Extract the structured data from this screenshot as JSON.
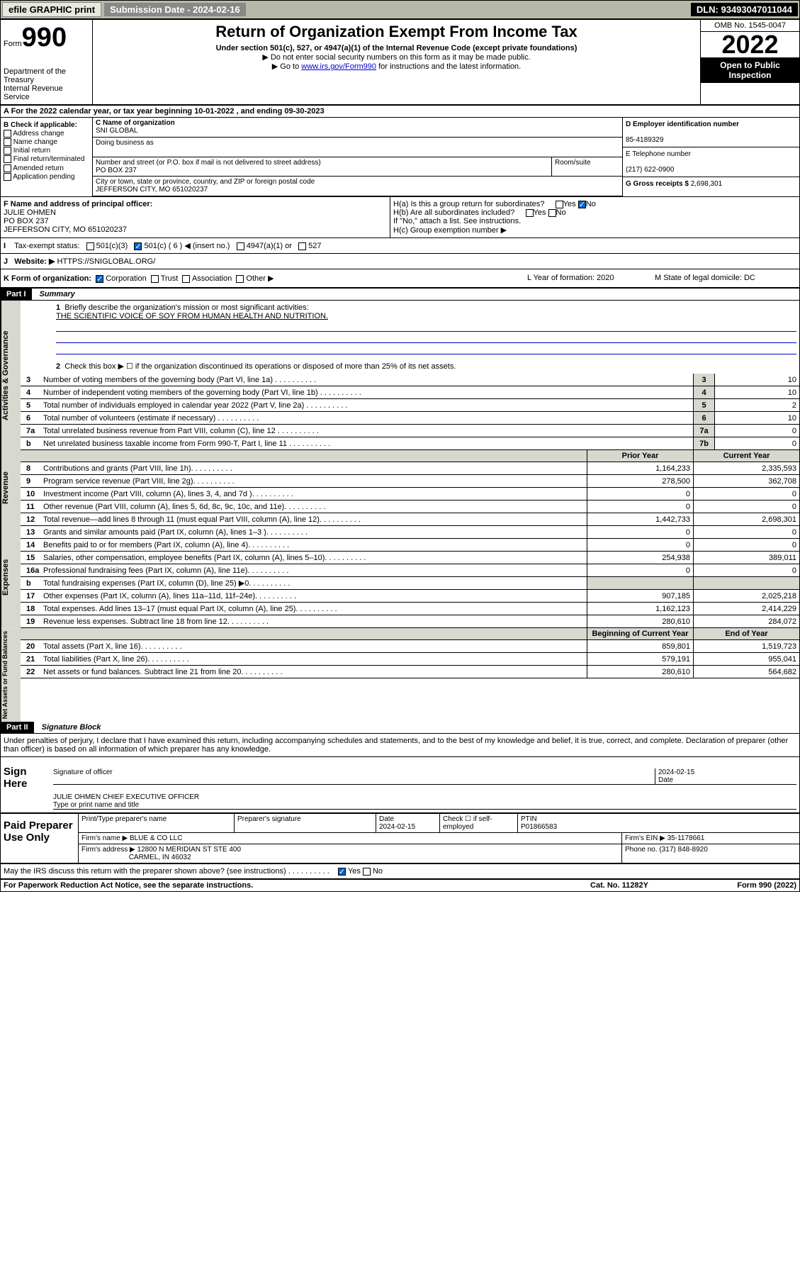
{
  "topbar": {
    "efile": "efile GRAPHIC print",
    "submission_label": "Submission Date - 2024-02-16",
    "dln": "DLN: 93493047011044"
  },
  "header": {
    "form_label": "Form",
    "form_num": "990",
    "dept": "Department of the Treasury",
    "irs": "Internal Revenue Service",
    "title": "Return of Organization Exempt From Income Tax",
    "subtitle": "Under section 501(c), 527, or 4947(a)(1) of the Internal Revenue Code (except private foundations)",
    "note1": "▶ Do not enter social security numbers on this form as it may be made public.",
    "note2_pre": "▶ Go to ",
    "note2_link": "www.irs.gov/Form990",
    "note2_post": " for instructions and the latest information.",
    "omb": "OMB No. 1545-0047",
    "year": "2022",
    "inspect": "Open to Public Inspection"
  },
  "row_a": "A For the 2022 calendar year, or tax year beginning 10-01-2022  , and ending 09-30-2023",
  "col_b": {
    "hdr": "B Check if applicable:",
    "addr": "Address change",
    "name": "Name change",
    "init": "Initial return",
    "final": "Final return/terminated",
    "amend": "Amended return",
    "app": "Application pending"
  },
  "col_c": {
    "name_label": "C Name of organization",
    "name": "SNI GLOBAL",
    "dba_label": "Doing business as",
    "addr_label": "Number and street (or P.O. box if mail is not delivered to street address)",
    "addr": "PO BOX 237",
    "room_label": "Room/suite",
    "city_label": "City or town, state or province, country, and ZIP or foreign postal code",
    "city": "JEFFERSON CITY, MO  651020237"
  },
  "col_d": {
    "ein_label": "D Employer identification number",
    "ein": "85-4189329",
    "phone_label": "E Telephone number",
    "phone": "(217) 622-0900",
    "gross_label": "G Gross receipts $",
    "gross": "2,698,301"
  },
  "f": {
    "label": "F Name and address of principal officer:",
    "name": "JULIE OHMEN",
    "addr1": "PO BOX 237",
    "addr2": "JEFFERSON CITY, MO  651020237"
  },
  "h": {
    "a": "H(a)  Is this a group return for subordinates?",
    "b": "H(b)  Are all subordinates included?",
    "b_note": "If \"No,\" attach a list. See instructions.",
    "c": "H(c)  Group exemption number ▶",
    "yes": "Yes",
    "no": "No"
  },
  "row_i": {
    "label": "Tax-exempt status:",
    "opts": [
      "501(c)(3)",
      "501(c) ( 6 ) ◀ (insert no.)",
      "4947(a)(1) or",
      "527"
    ]
  },
  "row_j": {
    "label": "Website: ▶",
    "val": "HTTPS://SNIGLOBAL.ORG/"
  },
  "row_k": {
    "k": "K Form of organization:",
    "corp": "Corporation",
    "trust": "Trust",
    "assoc": "Association",
    "other": "Other ▶",
    "l": "L Year of formation: 2020",
    "m": "M State of legal domicile: DC"
  },
  "part1": {
    "hdr": "Part I",
    "title": "Summary",
    "q1": "Briefly describe the organization's mission or most significant activities:",
    "mission": "THE SCIENTIFIC VOICE OF SOY FROM HUMAN HEALTH AND NUTRITION.",
    "q2": "Check this box ▶ ☐ if the organization discontinued its operations or disposed of more than 25% of its net assets.",
    "side_gov": "Activities & Governance",
    "side_rev": "Revenue",
    "side_exp": "Expenses",
    "side_net": "Net Assets or Fund Balances",
    "prior_hdr": "Prior Year",
    "current_hdr": "Current Year",
    "begin_hdr": "Beginning of Current Year",
    "end_hdr": "End of Year"
  },
  "gov_rows": [
    {
      "n": "3",
      "label": "Number of voting members of the governing body (Part VI, line 1a)",
      "box": "3",
      "val": "10"
    },
    {
      "n": "4",
      "label": "Number of independent voting members of the governing body (Part VI, line 1b)",
      "box": "4",
      "val": "10"
    },
    {
      "n": "5",
      "label": "Total number of individuals employed in calendar year 2022 (Part V, line 2a)",
      "box": "5",
      "val": "2"
    },
    {
      "n": "6",
      "label": "Total number of volunteers (estimate if necessary)",
      "box": "6",
      "val": "10"
    },
    {
      "n": "7a",
      "label": "Total unrelated business revenue from Part VIII, column (C), line 12",
      "box": "7a",
      "val": "0"
    },
    {
      "n": "b",
      "label": "Net unrelated business taxable income from Form 990-T, Part I, line 11",
      "box": "7b",
      "val": "0"
    }
  ],
  "rev_rows": [
    {
      "n": "8",
      "label": "Contributions and grants (Part VIII, line 1h)",
      "prior": "1,164,233",
      "cur": "2,335,593"
    },
    {
      "n": "9",
      "label": "Program service revenue (Part VIII, line 2g)",
      "prior": "278,500",
      "cur": "362,708"
    },
    {
      "n": "10",
      "label": "Investment income (Part VIII, column (A), lines 3, 4, and 7d )",
      "prior": "0",
      "cur": "0"
    },
    {
      "n": "11",
      "label": "Other revenue (Part VIII, column (A), lines 5, 6d, 8c, 9c, 10c, and 11e)",
      "prior": "0",
      "cur": "0"
    },
    {
      "n": "12",
      "label": "Total revenue—add lines 8 through 11 (must equal Part VIII, column (A), line 12)",
      "prior": "1,442,733",
      "cur": "2,698,301"
    }
  ],
  "exp_rows": [
    {
      "n": "13",
      "label": "Grants and similar amounts paid (Part IX, column (A), lines 1–3 )",
      "prior": "0",
      "cur": "0"
    },
    {
      "n": "14",
      "label": "Benefits paid to or for members (Part IX, column (A), line 4)",
      "prior": "0",
      "cur": "0"
    },
    {
      "n": "15",
      "label": "Salaries, other compensation, employee benefits (Part IX, column (A), lines 5–10)",
      "prior": "254,938",
      "cur": "389,011"
    },
    {
      "n": "16a",
      "label": "Professional fundraising fees (Part IX, column (A), line 11e)",
      "prior": "0",
      "cur": "0"
    },
    {
      "n": "b",
      "label": "Total fundraising expenses (Part IX, column (D), line 25) ▶0",
      "prior": "",
      "cur": "",
      "shade": true
    },
    {
      "n": "17",
      "label": "Other expenses (Part IX, column (A), lines 11a–11d, 11f–24e)",
      "prior": "907,185",
      "cur": "2,025,218"
    },
    {
      "n": "18",
      "label": "Total expenses. Add lines 13–17 (must equal Part IX, column (A), line 25)",
      "prior": "1,162,123",
      "cur": "2,414,229"
    },
    {
      "n": "19",
      "label": "Revenue less expenses. Subtract line 18 from line 12",
      "prior": "280,610",
      "cur": "284,072"
    }
  ],
  "net_rows": [
    {
      "n": "20",
      "label": "Total assets (Part X, line 16)",
      "prior": "859,801",
      "cur": "1,519,723"
    },
    {
      "n": "21",
      "label": "Total liabilities (Part X, line 26)",
      "prior": "579,191",
      "cur": "955,041"
    },
    {
      "n": "22",
      "label": "Net assets or fund balances. Subtract line 21 from line 20",
      "prior": "280,610",
      "cur": "564,682"
    }
  ],
  "part2": {
    "hdr": "Part II",
    "title": "Signature Block",
    "penalties": "Under penalties of perjury, I declare that I have examined this return, including accompanying schedules and statements, and to the best of my knowledge and belief, it is true, correct, and complete. Declaration of preparer (other than officer) is based on all information of which preparer has any knowledge."
  },
  "sign": {
    "title": "Sign Here",
    "sig_label": "Signature of officer",
    "date_label": "Date",
    "date": "2024-02-15",
    "name": "JULIE OHMEN CHIEF EXECUTIVE OFFICER",
    "name_label": "Type or print name and title"
  },
  "paid": {
    "title": "Paid Preparer Use Only",
    "prep_label": "Print/Type preparer's name",
    "sig_label": "Preparer's signature",
    "date_label": "Date",
    "date": "2024-02-15",
    "check_label": "Check ☐ if self-employed",
    "ptin_label": "PTIN",
    "ptin": "P01866583",
    "firm_label": "Firm's name    ▶",
    "firm": "BLUE & CO LLC",
    "ein_label": "Firm's EIN ▶",
    "ein": "35-1178661",
    "addr_label": "Firm's address ▶",
    "addr1": "12800 N MERIDIAN ST STE 400",
    "addr2": "CARMEL, IN  46032",
    "phone_label": "Phone no.",
    "phone": "(317) 848-8920"
  },
  "discuss": "May the IRS discuss this return with the preparer shown above? (see instructions)",
  "footer": {
    "left": "For Paperwork Reduction Act Notice, see the separate instructions.",
    "mid": "Cat. No. 11282Y",
    "right": "Form 990 (2022)"
  }
}
